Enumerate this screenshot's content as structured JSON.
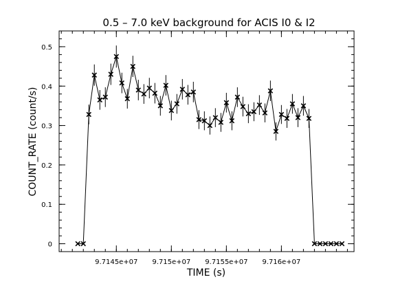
{
  "chart_data": {
    "type": "scatter",
    "title": "0.5 – 7.0 keV background for ACIS I0 & I2",
    "xlabel": "TIME (s)",
    "ylabel": "COUNT_RATE (count/s)",
    "xlim": [
      97139800,
      97166600
    ],
    "ylim": [
      -0.02,
      0.54
    ],
    "x_ticks": [
      97145000,
      97150000,
      97155000,
      97160000
    ],
    "x_tick_labels": [
      "9.7145e+07",
      "9.715e+07",
      "9.7155e+07",
      "9.716e+07"
    ],
    "x_minor_step": 1000,
    "y_ticks": [
      0,
      0.1,
      0.2,
      0.3,
      0.4,
      0.5
    ],
    "y_tick_labels": [
      "0",
      "0.1",
      "0.2",
      "0.3",
      "0.4",
      "0.5"
    ],
    "y_minor_step": 0.02,
    "grid": false,
    "legend": "none",
    "marker": "x-cross",
    "line_color": "#000000",
    "series": [
      {
        "x": [
          97141500,
          97142000,
          97142500,
          97143000,
          97143500,
          97144000,
          97144500,
          97145000,
          97145500,
          97146000,
          97146500,
          97147000,
          97147500,
          97148000,
          97148500,
          97149000,
          97149500,
          97150000,
          97150500,
          97151000,
          97151500,
          97152000,
          97152500,
          97153000,
          97153500,
          97154000,
          97154500,
          97155000,
          97155500,
          97156000,
          97156500,
          97157000,
          97157500,
          97158000,
          97158500,
          97159000,
          97159500,
          97160000,
          97160500,
          97161000,
          97161500,
          97162000,
          97162500,
          97163000,
          97163500,
          97164000,
          97164500,
          97165000,
          97165500
        ],
        "y": [
          0,
          0,
          0.328,
          0.428,
          0.365,
          0.372,
          0.43,
          0.475,
          0.408,
          0.368,
          0.45,
          0.39,
          0.38,
          0.395,
          0.382,
          0.35,
          0.402,
          0.338,
          0.355,
          0.392,
          0.378,
          0.385,
          0.315,
          0.312,
          0.3,
          0.32,
          0.308,
          0.358,
          0.312,
          0.372,
          0.348,
          0.33,
          0.335,
          0.352,
          0.332,
          0.388,
          0.285,
          0.328,
          0.318,
          0.355,
          0.32,
          0.35,
          0.318,
          0,
          0,
          0,
          0,
          0,
          0
        ],
        "err": [
          0,
          0,
          0.025,
          0.027,
          0.025,
          0.025,
          0.027,
          0.028,
          0.026,
          0.025,
          0.027,
          0.026,
          0.025,
          0.026,
          0.026,
          0.025,
          0.026,
          0.025,
          0.025,
          0.026,
          0.025,
          0.026,
          0.024,
          0.024,
          0.023,
          0.024,
          0.024,
          0.025,
          0.024,
          0.025,
          0.025,
          0.024,
          0.024,
          0.025,
          0.024,
          0.026,
          0.023,
          0.024,
          0.024,
          0.025,
          0.024,
          0.025,
          0.024,
          0,
          0,
          0,
          0,
          0,
          0
        ]
      }
    ]
  }
}
